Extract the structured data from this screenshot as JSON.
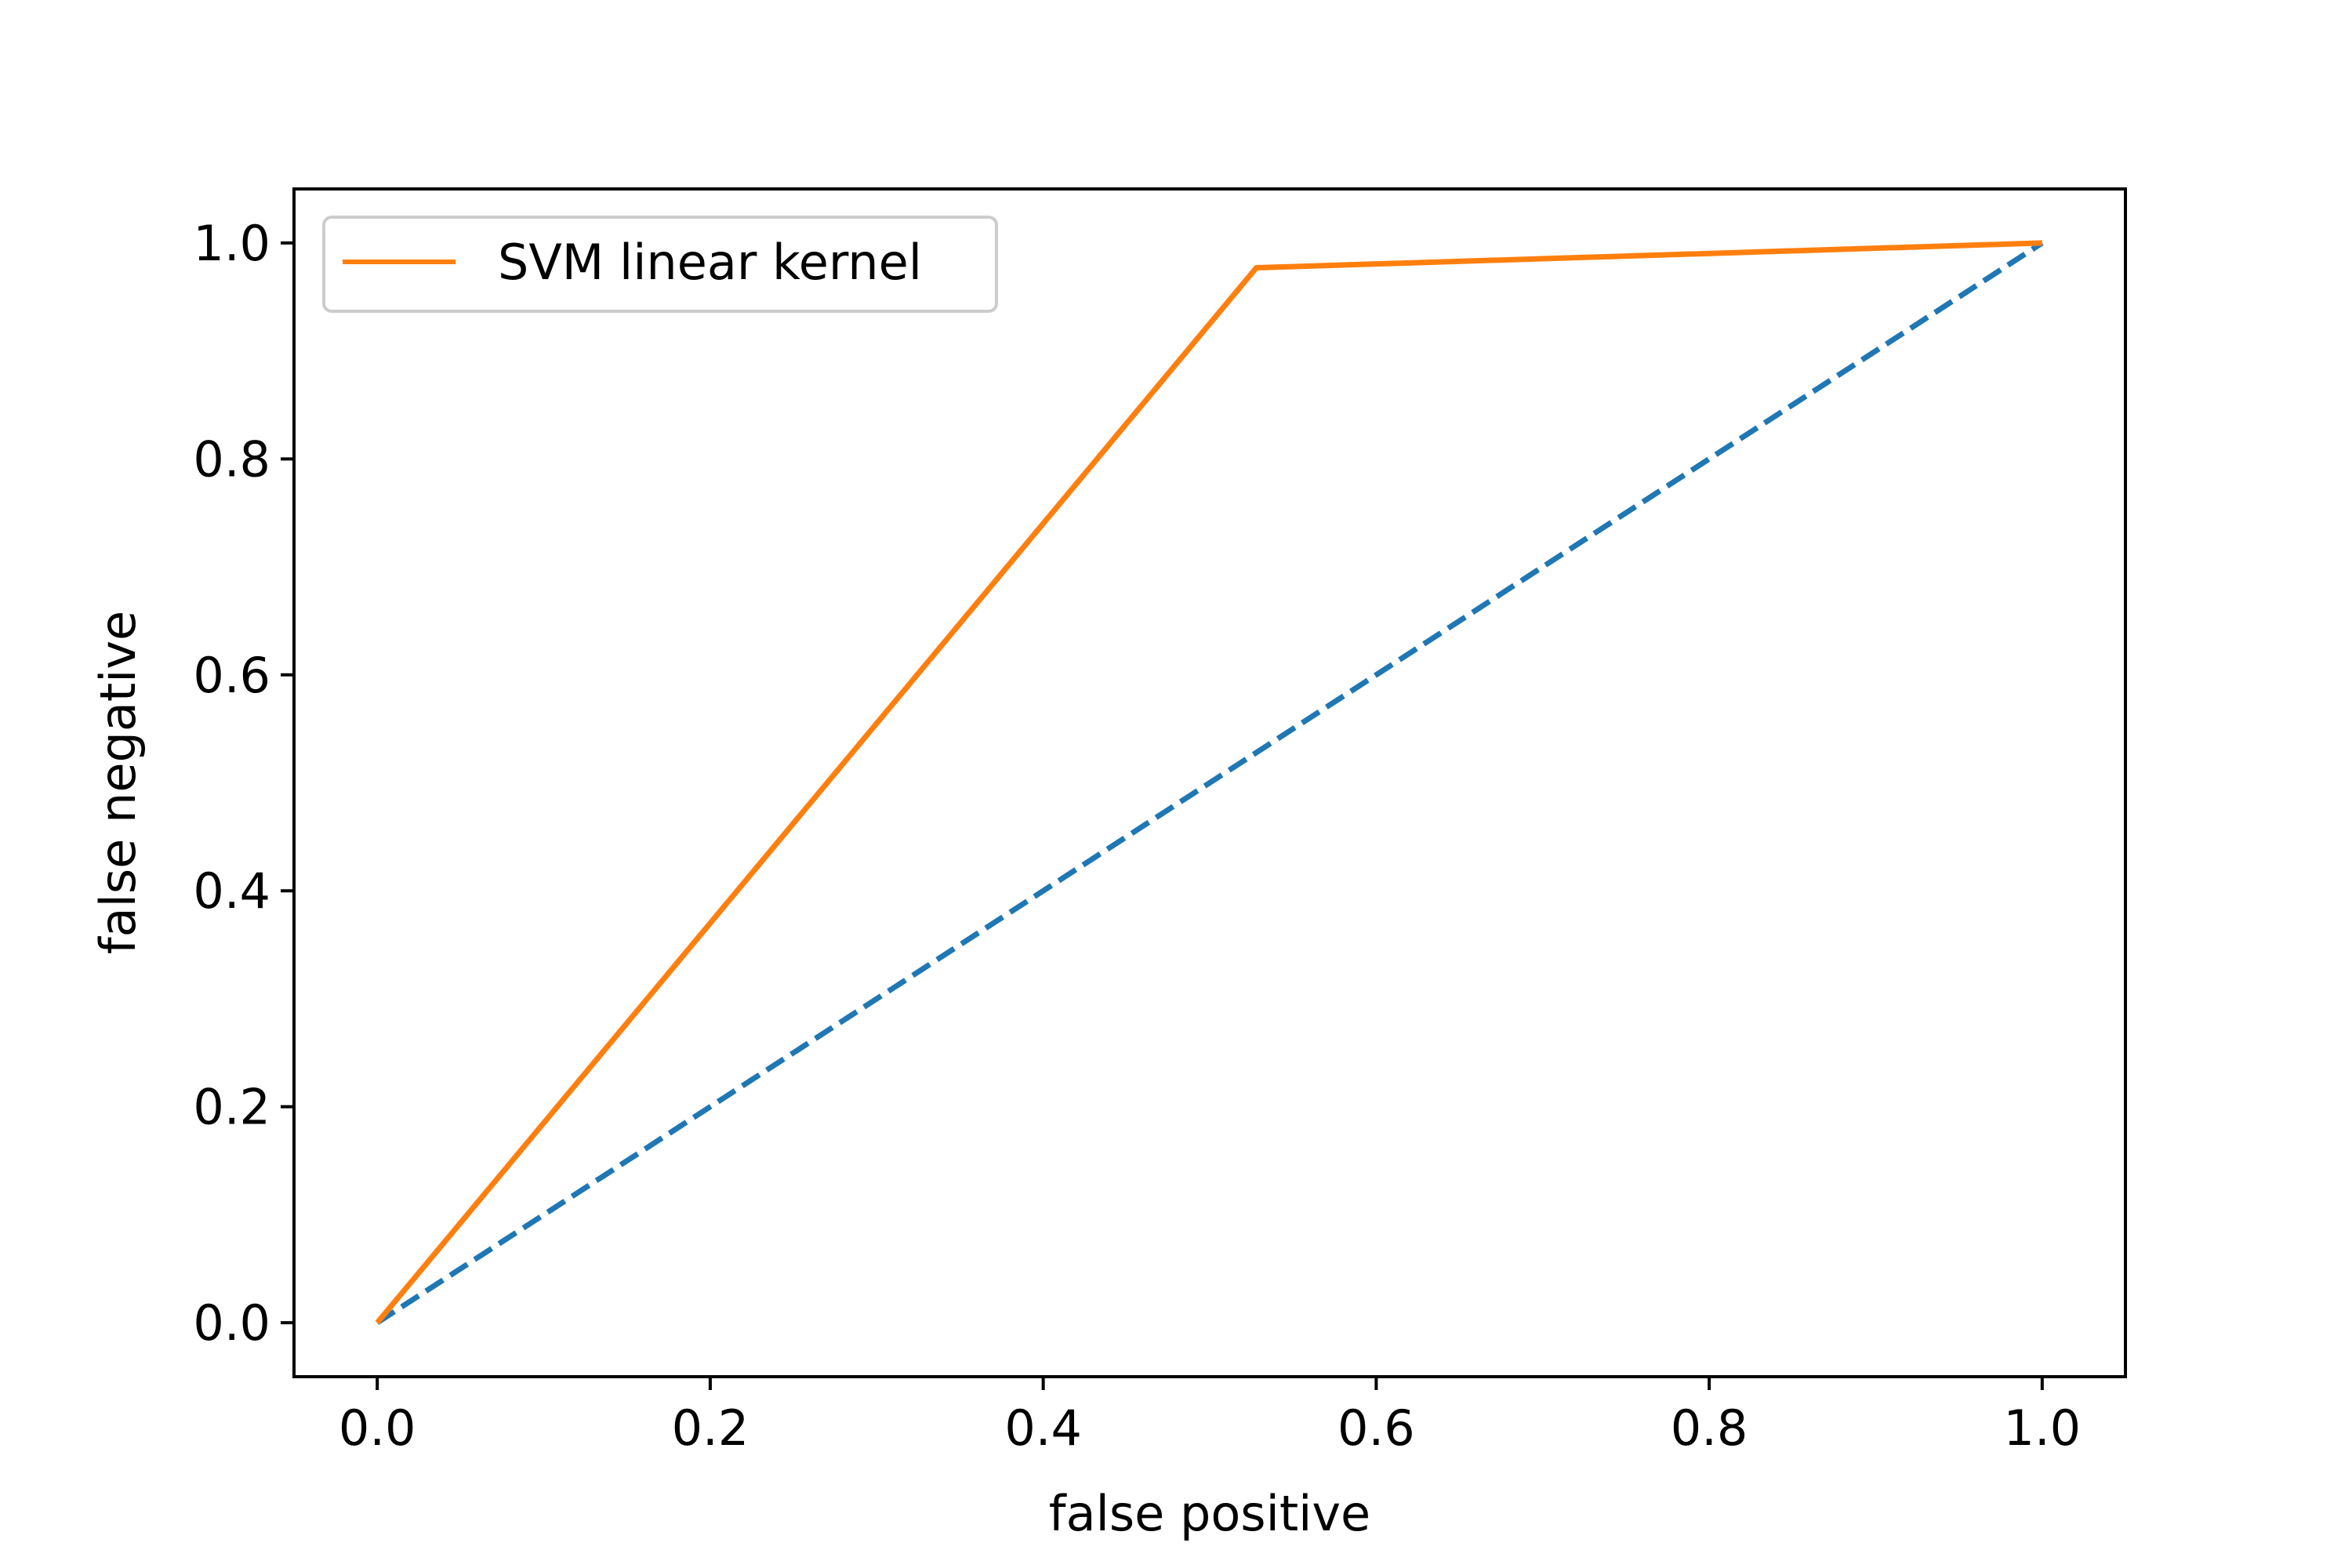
{
  "chart_data": {
    "type": "line",
    "title": "",
    "xlabel": "false positive",
    "ylabel": "false negative",
    "xlim": [
      -0.05,
      1.05
    ],
    "ylim": [
      -0.05,
      1.05
    ],
    "xticks": [
      "0.0",
      "0.2",
      "0.4",
      "0.6",
      "0.8",
      "1.0"
    ],
    "yticks": [
      "0.0",
      "0.2",
      "0.4",
      "0.6",
      "0.8",
      "1.0"
    ],
    "grid": false,
    "legend_position": "upper-left",
    "series": [
      {
        "name": "SVM linear kernel",
        "color": "#ff7f0e",
        "style": "solid",
        "x": [
          0.0,
          0.528,
          1.0
        ],
        "y": [
          0.0,
          0.977,
          1.0
        ]
      },
      {
        "color": "#1f77b4",
        "style": "dashed",
        "x": [
          0.0,
          1.0
        ],
        "y": [
          0.0,
          1.0
        ]
      }
    ]
  }
}
